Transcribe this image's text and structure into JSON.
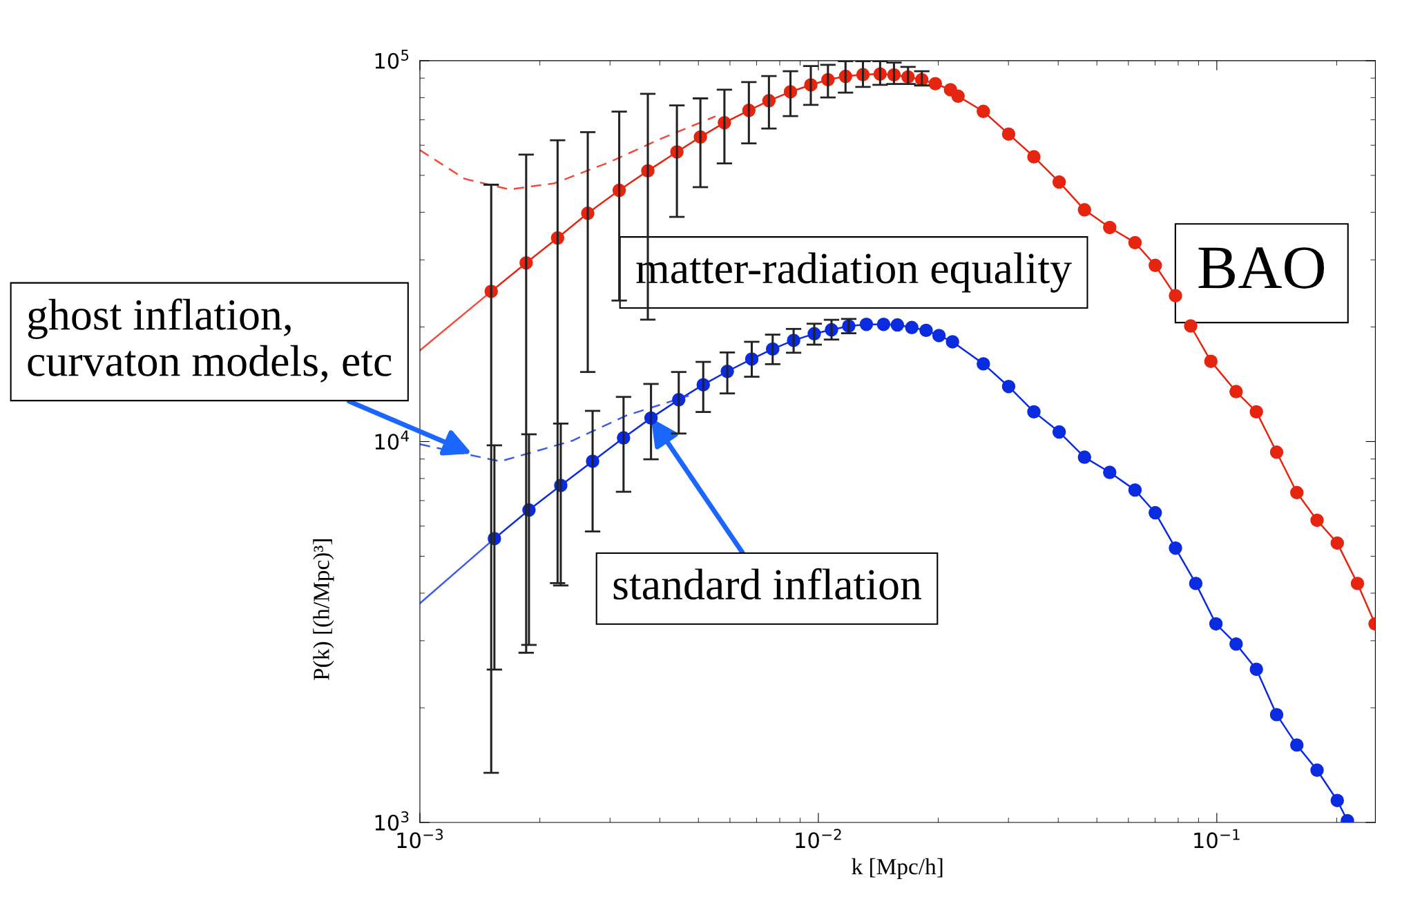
{
  "chart_data": {
    "type": "line",
    "xlabel": "k [Mpc/h]",
    "ylabel": "P(k) [(h/Mpc)³]",
    "log": "xy",
    "grid": false,
    "xlim": [
      0.001,
      0.25
    ],
    "ylim": [
      1000,
      100000
    ],
    "xticks": [
      {
        "value": 0.001,
        "label": "10$^{−3}$"
      },
      {
        "value": 0.01,
        "label": "10$^{−2}$"
      },
      {
        "value": 0.1,
        "label": "10$^{−1}$"
      }
    ],
    "yticks": [
      {
        "value": 1000,
        "label": "10$^{3}$"
      },
      {
        "value": 10000,
        "label": "10$^{4}$"
      },
      {
        "value": 100000,
        "label": "10$^{5}$"
      }
    ],
    "series": [
      {
        "color": "#f04b3c",
        "marker": "none",
        "line_style": "solid",
        "x": [
          0.001,
          0.00151
        ],
        "values": [
          17350,
          24800
        ]
      },
      {
        "color": "#e62510",
        "marker": "circle",
        "line_style": "solid",
        "x": [
          0.00151,
          0.001848,
          0.002216,
          0.002638,
          0.003164,
          0.003733,
          0.004416,
          0.005058,
          0.005811,
          0.006693,
          0.007516,
          0.008511,
          0.009574,
          0.01057,
          0.0117,
          0.01294,
          0.01429,
          0.01548,
          0.01679,
          0.01818,
          0.01966,
          0.02146,
          0.02242,
          0.02595,
          0.03003,
          0.03475,
          0.04022,
          0.04655,
          0.05386,
          0.06234,
          0.07008,
          0.07875,
          0.08599,
          0.09663,
          0.1118,
          0.1257,
          0.1413,
          0.1588,
          0.1785,
          0.2006,
          0.2254,
          0.2496
        ],
        "values": [
          24800,
          29450,
          34250,
          39760,
          45680,
          51390,
          57620,
          63050,
          68750,
          74060,
          78520,
          82860,
          86380,
          89130,
          90990,
          91930,
          92250,
          91780,
          90670,
          89130,
          87060,
          83890,
          80680,
          73620,
          64190,
          55940,
          48020,
          40600,
          36480,
          33290,
          29020,
          24160,
          20120,
          16250,
          13530,
          11970,
          9380,
          7348,
          6214,
          5415,
          4242,
          3322
        ],
        "errors": [
          [
            1350,
            47250
          ],
          [
            2790,
            56700
          ],
          [
            4250,
            61800
          ],
          [
            15230,
            64900
          ],
          [
            23460,
            73500
          ],
          [
            20900,
            81860
          ],
          [
            38900,
            76300
          ],
          [
            46560,
            79620
          ],
          [
            53760,
            83890
          ],
          [
            60670,
            87900
          ],
          [
            66370,
            91150
          ],
          [
            71530,
            93870
          ],
          [
            76530,
            96830
          ],
          [
            80060,
            97500
          ],
          [
            82440,
            99750
          ],
          [
            85360,
            99750
          ],
          [
            86390,
            99750
          ],
          [
            86840,
            98880
          ],
          [
            86840,
            96340
          ],
          [
            86100,
            93870
          ],
          null,
          null,
          null,
          null,
          null,
          null,
          null,
          null,
          null,
          null,
          null,
          null,
          null,
          null,
          null,
          null,
          null,
          null,
          null,
          null,
          null,
          null
        ]
      },
      {
        "color": "#f04b3c",
        "marker": "none",
        "line_style": "dashed",
        "x": [
          0.001,
          0.001295,
          0.001677,
          0.002173,
          0.002962,
          0.004045,
          0.00552
        ],
        "values": [
          58250,
          48980,
          45920,
          47640,
          53930,
          62520,
          71450
        ]
      },
      {
        "color": "#3b5bf0",
        "marker": "none",
        "line_style": "solid",
        "x": [
          0.001,
          0.001538
        ],
        "values": [
          3760,
          5564
        ]
      },
      {
        "color": "#0b2be0",
        "marker": "circle",
        "line_style": "solid",
        "x": [
          0.001538,
          0.001878,
          0.002257,
          0.002713,
          0.003244,
          0.003802,
          0.004463,
          0.005142,
          0.005909,
          0.006806,
          0.00768,
          0.008668,
          0.009766,
          0.01079,
          0.01192,
          0.0132,
          0.01458,
          0.01579,
          0.01716,
          0.01864,
          0.02008,
          0.02171,
          0.02595,
          0.03003,
          0.03475,
          0.04022,
          0.04655,
          0.05386,
          0.06234,
          0.07008,
          0.07875,
          0.08855,
          0.0995,
          0.1118,
          0.1257,
          0.1413,
          0.1588,
          0.1785,
          0.2006,
          0.2127
        ],
        "values": [
          5564,
          6612,
          7672,
          8879,
          10230,
          11530,
          12880,
          14100,
          15290,
          16470,
          17500,
          18440,
          19190,
          19660,
          20100,
          20310,
          20310,
          20240,
          19930,
          19590,
          18980,
          18280,
          16000,
          13950,
          11970,
          10600,
          9100,
          8302,
          7461,
          6504,
          5253,
          4242,
          3322,
          2941,
          2525,
          1919,
          1597,
          1372,
          1142,
          1011
        ],
        "errors": [
          [
            2521,
            9775
          ],
          [
            2925,
            10450
          ],
          [
            4190,
            11150
          ],
          [
            5808,
            12040
          ],
          [
            7383,
            13100
          ],
          [
            8985,
            14170
          ],
          [
            10500,
            15230
          ],
          [
            11960,
            16190
          ],
          [
            13380,
            17140
          ],
          [
            14800,
            18280
          ],
          [
            15970,
            19090
          ],
          [
            17110,
            19760
          ],
          [
            17970,
            20390
          ],
          [
            18530,
            20880
          ],
          [
            19250,
            20990
          ],
          null,
          null,
          null,
          null,
          null,
          null,
          null,
          null,
          null,
          null,
          null,
          null,
          null,
          null,
          null,
          null,
          null,
          null,
          null,
          null,
          null,
          null,
          null,
          null,
          null
        ]
      },
      {
        "color": "#3b5bf0",
        "marker": "none",
        "line_style": "dashed",
        "x": [
          0.001,
          0.001592,
          0.002411,
          0.003286,
          0.004727
        ],
        "values": [
          9840,
          8870,
          10050,
          11690,
          13200
        ]
      }
    ],
    "annotations": [
      "matter-radiation equality",
      "BAO",
      {
        "text": "ghost inflation,\ncurvaton models, etc",
        "x": 0.00135,
        "y": 9300
      },
      {
        "text": "standard inflation",
        "x": 0.003802,
        "y": 11530
      }
    ]
  }
}
